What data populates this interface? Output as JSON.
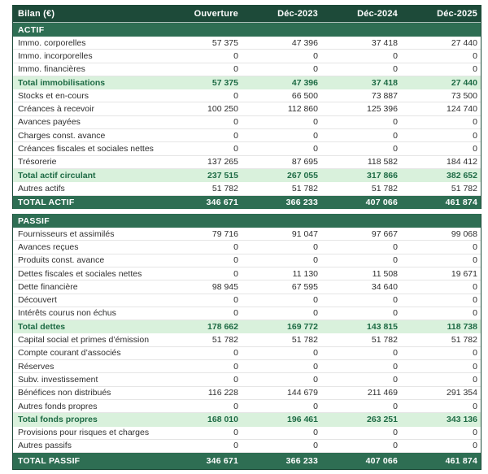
{
  "colors": {
    "header_bg": "#1d4a39",
    "section_bg": "#2e6e53",
    "subtotal_bg": "#d9f1dc",
    "subtotal_text": "#1e6b45",
    "border": "#1d4a39",
    "row_sep": "#e5e5e5",
    "text": "#2f2f2f"
  },
  "table": {
    "header": {
      "label": "Bilan (€)",
      "columns": [
        "Ouverture",
        "Déc-2023",
        "Déc-2024",
        "Déc-2025"
      ]
    },
    "sections": [
      {
        "title": "ACTIF",
        "rows": [
          {
            "label": "Immo. corporelles",
            "style": "item",
            "values": [
              "57 375",
              "47 396",
              "37 418",
              "27 440"
            ]
          },
          {
            "label": "Immo. incorporelles",
            "style": "item",
            "values": [
              "0",
              "0",
              "0",
              "0"
            ]
          },
          {
            "label": "Immo. financières",
            "style": "item",
            "values": [
              "0",
              "0",
              "0",
              "0"
            ]
          },
          {
            "label": "Total immobilisations",
            "style": "subtotal",
            "values": [
              "57 375",
              "47 396",
              "37 418",
              "27 440"
            ]
          },
          {
            "label": "Stocks et en-cours",
            "style": "item",
            "values": [
              "0",
              "66 500",
              "73 887",
              "73 500"
            ]
          },
          {
            "label": "Créances à recevoir",
            "style": "item",
            "values": [
              "100 250",
              "112 860",
              "125 396",
              "124 740"
            ]
          },
          {
            "label": "Avances payées",
            "style": "item",
            "values": [
              "0",
              "0",
              "0",
              "0"
            ]
          },
          {
            "label": "Charges const. avance",
            "style": "item",
            "values": [
              "0",
              "0",
              "0",
              "0"
            ]
          },
          {
            "label": "Créances fiscales et sociales nettes",
            "style": "item",
            "values": [
              "0",
              "0",
              "0",
              "0"
            ]
          },
          {
            "label": "Trésorerie",
            "style": "item",
            "values": [
              "137 265",
              "87 695",
              "118 582",
              "184 412"
            ]
          },
          {
            "label": "Total actif circulant",
            "style": "subtotal",
            "values": [
              "237 515",
              "267 055",
              "317 866",
              "382 652"
            ]
          },
          {
            "label": "Autres actifs",
            "style": "item",
            "values": [
              "51 782",
              "51 782",
              "51 782",
              "51 782"
            ]
          },
          {
            "label": "TOTAL ACTIF",
            "style": "total",
            "values": [
              "346 671",
              "366 233",
              "407 066",
              "461 874"
            ]
          }
        ]
      },
      {
        "title": "PASSIF",
        "rows": [
          {
            "label": "Fournisseurs et assimilés",
            "style": "item",
            "values": [
              "79 716",
              "91 047",
              "97 667",
              "99 068"
            ]
          },
          {
            "label": "Avances reçues",
            "style": "item",
            "values": [
              "0",
              "0",
              "0",
              "0"
            ]
          },
          {
            "label": "Produits const. avance",
            "style": "item",
            "values": [
              "0",
              "0",
              "0",
              "0"
            ]
          },
          {
            "label": "Dettes fiscales et sociales nettes",
            "style": "item",
            "values": [
              "0",
              "11 130",
              "11 508",
              "19 671"
            ]
          },
          {
            "label": "Dette financière",
            "style": "item",
            "values": [
              "98 945",
              "67 595",
              "34 640",
              "0"
            ]
          },
          {
            "label": "Découvert",
            "style": "item",
            "values": [
              "0",
              "0",
              "0",
              "0"
            ]
          },
          {
            "label": "Intérêts courus non échus",
            "style": "item",
            "values": [
              "0",
              "0",
              "0",
              "0"
            ]
          },
          {
            "label": "Total dettes",
            "style": "subtotal",
            "values": [
              "178 662",
              "169 772",
              "143 815",
              "118 738"
            ]
          },
          {
            "label": "Capital social et primes d’émission",
            "style": "item",
            "values": [
              "51 782",
              "51 782",
              "51 782",
              "51 782"
            ]
          },
          {
            "label": "Compte courant d’associés",
            "style": "item",
            "values": [
              "0",
              "0",
              "0",
              "0"
            ]
          },
          {
            "label": "Réserves",
            "style": "item",
            "values": [
              "0",
              "0",
              "0",
              "0"
            ]
          },
          {
            "label": "Subv. investissement",
            "style": "item",
            "values": [
              "0",
              "0",
              "0",
              "0"
            ]
          },
          {
            "label": "Bénéfices non distribués",
            "style": "item",
            "values": [
              "116 228",
              "144 679",
              "211 469",
              "291 354"
            ]
          },
          {
            "label": "Autres fonds propres",
            "style": "item",
            "values": [
              "0",
              "0",
              "0",
              "0"
            ]
          },
          {
            "label": "Total fonds propres",
            "style": "subtotal",
            "values": [
              "168 010",
              "196 461",
              "263 251",
              "343 136"
            ]
          },
          {
            "label": "Provisions pour risques et charges",
            "style": "item",
            "values": [
              "0",
              "0",
              "0",
              "0"
            ]
          },
          {
            "label": "Autres passifs",
            "style": "item",
            "values": [
              "0",
              "0",
              "0",
              "0"
            ]
          },
          {
            "label": "TOTAL PASSIF",
            "style": "total",
            "values": [
              "346 671",
              "366 233",
              "407 066",
              "461 874"
            ]
          }
        ]
      }
    ]
  }
}
